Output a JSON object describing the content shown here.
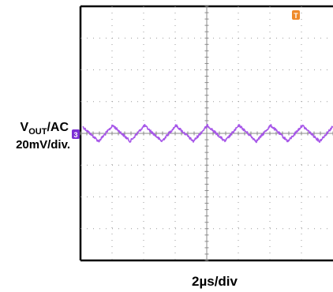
{
  "chart_data": {
    "type": "line",
    "title": "",
    "y_label": {
      "prefix": "V",
      "subscript": "OUT",
      "suffix": "/AC",
      "scale": "20mV/div."
    },
    "x_label": "2µs/div",
    "grid": true,
    "divisions": {
      "x": 8,
      "y": 8
    },
    "channel_marker": "3",
    "trigger_marker": "T",
    "series": [
      {
        "color": "#a24ee8",
        "waveform": "triangle-ripple",
        "period_divisions": 1.0,
        "amplitude_divisions": 0.25,
        "offset_divisions": 0
      }
    ]
  }
}
